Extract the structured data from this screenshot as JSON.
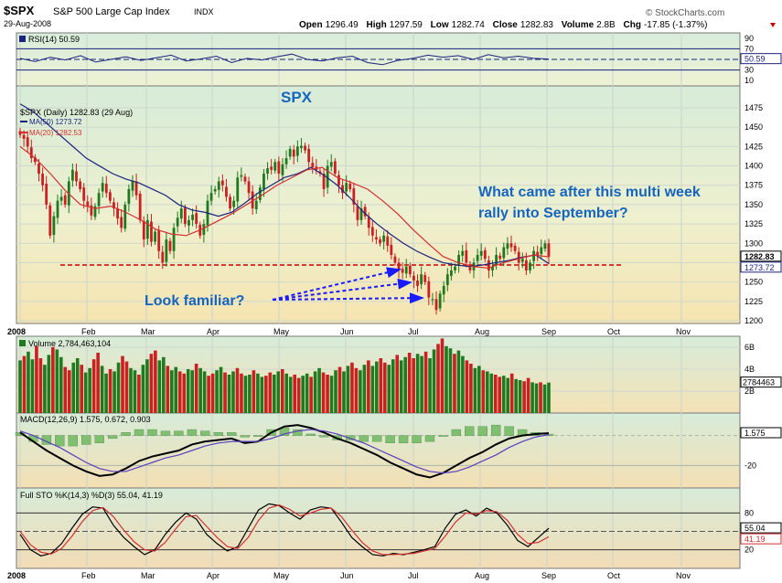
{
  "header": {
    "symbol": "$SPX",
    "name": "S&P 500 Large Cap Index",
    "exchange": "INDX",
    "date": "29-Aug-2008",
    "brand": "© StockCharts.com",
    "open_label": "Open",
    "open": "1296.49",
    "high_label": "High",
    "high": "1297.59",
    "low_label": "Low",
    "low": "1282.74",
    "close_label": "Close",
    "close": "1282.83",
    "volume_label": "Volume",
    "volume": "2.8B",
    "chg_label": "Chg",
    "chg": "-17.85 (-1.37%)"
  },
  "annotations": {
    "spx_title": "SPX",
    "question_line1": "What came after this multi week",
    "question_line2": "rally into September?",
    "look_familiar": "Look familiar?"
  },
  "colors": {
    "up": "#1f7a1f",
    "down": "#cc1f1f",
    "ma50": "#1a237e",
    "ma20": "#d32f2f",
    "annotation": "#1565c0",
    "support_line": "#cc0000",
    "panel_top": "#d9ecd9",
    "panel_bottom": "#f3e3b4"
  },
  "chart_data": [
    {
      "type": "line",
      "panel": "rsi",
      "label": "RSI(14) 50.59",
      "series": [
        {
          "name": "RSI(14)",
          "values": [
            52,
            46,
            54,
            49,
            57,
            45,
            50,
            55,
            48,
            53,
            58,
            47,
            51,
            56,
            44,
            52,
            49,
            55,
            60,
            50,
            47,
            53,
            56,
            44,
            40,
            48,
            52,
            58,
            54,
            57,
            50,
            59,
            53,
            56,
            52,
            50.59
          ]
        }
      ],
      "ylim": [
        0,
        100
      ],
      "yticks": [
        "90",
        "70",
        "30",
        "10"
      ],
      "levels": [
        70,
        30
      ],
      "last_value_label": "50.59"
    },
    {
      "type": "candlestick",
      "panel": "price",
      "title": "$SPX (Daily) 1282.83 (29 Aug)",
      "x_labels": [
        "2008",
        "Feb",
        "Mar",
        "Apr",
        "May",
        "Jun",
        "Jul",
        "Aug",
        "Sep",
        "Oct",
        "Nov"
      ],
      "ylim": [
        1190,
        1485
      ],
      "yticks": [
        "1475",
        "1450",
        "1425",
        "1400",
        "1375",
        "1350",
        "1325",
        "1300",
        "1275",
        "1250",
        "1225",
        "1200"
      ],
      "closes": [
        1440,
        1435,
        1425,
        1410,
        1405,
        1390,
        1375,
        1350,
        1310,
        1335,
        1355,
        1360,
        1350,
        1380,
        1395,
        1380,
        1370,
        1355,
        1348,
        1336,
        1348,
        1365,
        1378,
        1365,
        1355,
        1345,
        1332,
        1320,
        1350,
        1370,
        1380,
        1362,
        1330,
        1305,
        1330,
        1302,
        1315,
        1290,
        1275,
        1305,
        1290,
        1320,
        1333,
        1345,
        1325,
        1330,
        1337,
        1325,
        1310,
        1325,
        1355,
        1365,
        1370,
        1380,
        1375,
        1360,
        1345,
        1355,
        1385,
        1388,
        1380,
        1365,
        1345,
        1355,
        1372,
        1390,
        1397,
        1395,
        1405,
        1390,
        1402,
        1410,
        1422,
        1412,
        1425,
        1426,
        1420,
        1405,
        1398,
        1395,
        1390,
        1370,
        1400,
        1405,
        1390,
        1375,
        1365,
        1378,
        1370,
        1350,
        1330,
        1345,
        1335,
        1320,
        1310,
        1305,
        1300,
        1310,
        1297,
        1285,
        1275,
        1265,
        1262,
        1270,
        1260,
        1252,
        1245,
        1260,
        1250,
        1230,
        1228,
        1214,
        1235,
        1245,
        1260,
        1265,
        1270,
        1285,
        1290,
        1275,
        1265,
        1275,
        1285,
        1290,
        1280,
        1265,
        1270,
        1285,
        1280,
        1295,
        1300,
        1295,
        1290,
        1275,
        1280,
        1265,
        1275,
        1290,
        1285,
        1295,
        1300,
        1282.83
      ],
      "series": [
        {
          "name": "MA(50)",
          "value_label": "1273.72",
          "values": [
            1480,
            1470,
            1455,
            1440,
            1425,
            1410,
            1400,
            1390,
            1383,
            1378,
            1370,
            1362,
            1350,
            1343,
            1340,
            1335,
            1340,
            1352,
            1365,
            1375,
            1385,
            1390,
            1398,
            1388,
            1375,
            1358,
            1340,
            1325,
            1312,
            1300,
            1290,
            1282,
            1275,
            1272,
            1270,
            1272,
            1275,
            1278,
            1282,
            1285,
            1273.72
          ]
        },
        {
          "name": "MA(20)",
          "value_label": "1282.53",
          "values": [
            1425,
            1410,
            1390,
            1368,
            1350,
            1345,
            1348,
            1340,
            1330,
            1318,
            1312,
            1310,
            1318,
            1328,
            1338,
            1350,
            1362,
            1375,
            1385,
            1395,
            1398,
            1385,
            1378,
            1370,
            1355,
            1338,
            1318,
            1300,
            1283,
            1275,
            1270,
            1268,
            1275,
            1280,
            1285,
            1282.53
          ]
        }
      ],
      "support_level": 1272,
      "last_value_label": "1282.83"
    },
    {
      "type": "bar",
      "panel": "volume",
      "label": "Volume 2,784,463,104",
      "yticks": [
        "6B",
        "4B",
        "2B"
      ],
      "ylim": [
        0,
        7
      ],
      "values": [
        4.8,
        5.2,
        5.6,
        4.9,
        6.1,
        5.0,
        4.4,
        5.3,
        6.0,
        5.8,
        5.1,
        4.2,
        3.9,
        4.6,
        5.0,
        4.4,
        3.7,
        4.1,
        4.9,
        5.5,
        4.3,
        3.6,
        4.0,
        3.8,
        4.6,
        5.2,
        4.7,
        4.1,
        3.9,
        3.5,
        4.4,
        4.9,
        5.4,
        5.7,
        4.8,
        5.1,
        4.3,
        3.9,
        4.2,
        3.8,
        3.6,
        4.0,
        3.9,
        4.5,
        4.1,
        3.8,
        3.4,
        3.6,
        3.9,
        4.2,
        3.7,
        3.5,
        3.8,
        4.1,
        3.6,
        3.4,
        3.5,
        3.9,
        3.6,
        3.3,
        3.4,
        3.7,
        3.5,
        3.8,
        4.0,
        3.6,
        3.3,
        3.5,
        3.2,
        3.4,
        3.6,
        3.3,
        3.8,
        4.1,
        3.7,
        3.5,
        3.4,
        3.9,
        4.2,
        3.8,
        4.3,
        4.6,
        4.1,
        3.9,
        4.4,
        4.8,
        4.3,
        4.7,
        5.0,
        4.6,
        4.4,
        4.9,
        5.3,
        4.8,
        5.1,
        5.5,
        5.0,
        5.4,
        5.2,
        5.6,
        5.0,
        5.8,
        6.3,
        6.8,
        6.1,
        5.9,
        5.4,
        5.7,
        5.2,
        4.8,
        4.5,
        4.1,
        4.3,
        3.9,
        3.8,
        3.6,
        3.5,
        3.3,
        3.4,
        3.2,
        3.6,
        3.1,
        3.0,
        2.9,
        3.2,
        2.8,
        2.7,
        2.8,
        2.6,
        2.78
      ],
      "last_value_label": "2784463"
    },
    {
      "type": "line",
      "panel": "macd",
      "label": "MACD(12,26,9) 1.575, 0.672, 0.903",
      "yticks": [
        "0",
        "-20"
      ],
      "ylim": [
        -35,
        15
      ],
      "series": [
        {
          "name": "MACD(12,26,9)",
          "values": [
            2,
            -4,
            -10,
            -15,
            -20,
            -24,
            -27,
            -26,
            -22,
            -17,
            -14,
            -12,
            -10,
            -6,
            -4,
            -3,
            -2,
            -5,
            -4,
            2,
            6,
            7,
            5,
            2,
            -2,
            -5,
            -9,
            -13,
            -18,
            -22,
            -26,
            -28,
            -25,
            -20,
            -15,
            -11,
            -6,
            -2,
            0,
            1,
            1.575
          ]
        },
        {
          "name": "Signal",
          "values": [
            3,
            0,
            -4,
            -8,
            -13,
            -18,
            -22,
            -24,
            -24,
            -21,
            -18,
            -15,
            -13,
            -10,
            -7,
            -5,
            -4,
            -4,
            -4,
            -2,
            1,
            3,
            4,
            3,
            1,
            -2,
            -5,
            -9,
            -13,
            -17,
            -21,
            -24,
            -25,
            -24,
            -21,
            -17,
            -13,
            -8,
            -4,
            -1,
            0.672
          ]
        }
      ],
      "histogram": [
        2,
        -4,
        -6,
        -7,
        -7,
        -6,
        -5,
        -2,
        2,
        4,
        4,
        3,
        3,
        4,
        3,
        2,
        2,
        -1,
        0,
        4,
        5,
        4,
        1,
        -1,
        -3,
        -3,
        -4,
        -4,
        -5,
        -5,
        -5,
        -4,
        0,
        4,
        6,
        6,
        7,
        6,
        4,
        2,
        0.903
      ],
      "last_value_label": "1.575"
    },
    {
      "type": "line",
      "panel": "stochastic",
      "label": "Full STO %K(14,3) %D(3) 55.04, 41.19",
      "yticks": [
        "80",
        "20"
      ],
      "ylim": [
        0,
        100
      ],
      "levels": [
        80,
        20
      ],
      "series": [
        {
          "name": "%K(14,3)",
          "values": [
            45,
            20,
            10,
            14,
            30,
            55,
            78,
            90,
            88,
            60,
            40,
            25,
            12,
            20,
            45,
            65,
            80,
            70,
            45,
            30,
            18,
            25,
            55,
            85,
            95,
            92,
            80,
            70,
            85,
            90,
            88,
            65,
            40,
            25,
            12,
            10,
            14,
            12,
            16,
            20,
            25,
            55,
            78,
            85,
            75,
            88,
            80,
            60,
            35,
            25,
            40,
            55.04
          ]
        },
        {
          "name": "%D(3)",
          "values": [
            50,
            28,
            16,
            13,
            22,
            42,
            66,
            84,
            89,
            74,
            52,
            33,
            20,
            18,
            32,
            54,
            74,
            76,
            58,
            40,
            25,
            22,
            40,
            68,
            88,
            93,
            86,
            75,
            80,
            86,
            88,
            74,
            52,
            32,
            18,
            12,
            12,
            13,
            14,
            18,
            22,
            42,
            65,
            80,
            78,
            84,
            82,
            68,
            45,
            30,
            32,
            41.19
          ]
        }
      ],
      "last_value_labels": [
        "55.04",
        "41.19"
      ]
    }
  ]
}
